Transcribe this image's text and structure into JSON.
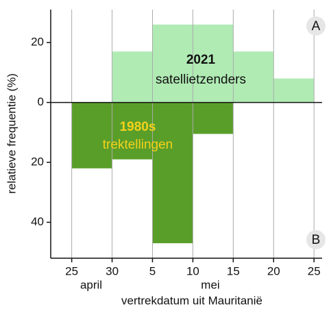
{
  "chart_data": {
    "type": "histogram",
    "ylabel": "relatieve frequentie (%)",
    "xlabel": "vertrekdatum uit Mauritanië",
    "month_labels": [
      "april",
      "mei"
    ],
    "panel_labels": [
      "A",
      "B"
    ],
    "xlim": [
      22.4,
      56
    ],
    "xticks": [
      25,
      30,
      {
        "value": 35,
        "label": "5"
      },
      {
        "value": 40,
        "label": "10"
      },
      {
        "value": 45,
        "label": "15"
      },
      {
        "value": 50,
        "label": "20"
      },
      {
        "value": 55,
        "label": "25"
      }
    ],
    "ylim": [
      -52,
      31
    ],
    "yticks": [
      20,
      0,
      {
        "value": -20,
        "label": "20"
      },
      {
        "value": -40,
        "label": "40"
      }
    ],
    "grid": true,
    "series": [
      {
        "name": "satellietzenders",
        "year": "2021",
        "color": "#b0ebb4",
        "text_color": "#111111",
        "bins": [
          30,
          35,
          40,
          45,
          50,
          55
        ],
        "values": [
          17,
          26,
          26,
          17,
          8
        ]
      },
      {
        "name": "trektellingen",
        "year": "1980s",
        "color": "#5a9e2a",
        "text_color": "#f5d21a",
        "bins": [
          25,
          30,
          35,
          40,
          45
        ],
        "values": [
          -22,
          -19,
          -47,
          -10.5
        ]
      }
    ]
  }
}
